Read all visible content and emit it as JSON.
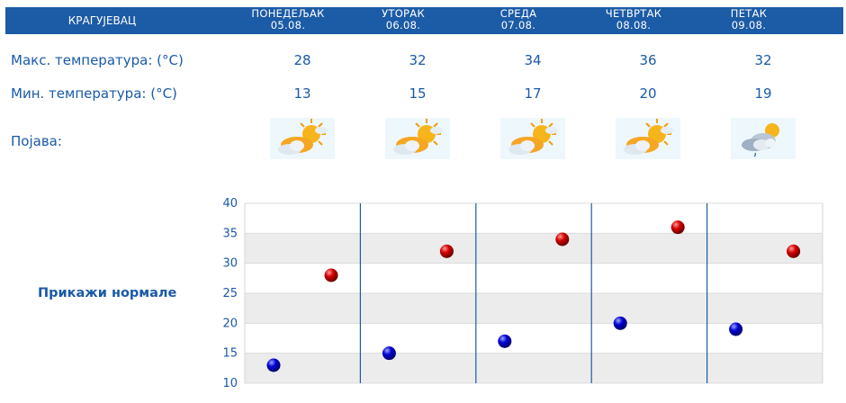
{
  "header": {
    "city": "КРАГУЈЕВАЦ",
    "days": [
      {
        "name": "ПОНЕДЕЉАК",
        "date": "05.08."
      },
      {
        "name": "УТОРАК",
        "date": "06.08."
      },
      {
        "name": "СРЕДА",
        "date": "07.08."
      },
      {
        "name": "ЧЕТВРТАК",
        "date": "08.08."
      },
      {
        "name": "ПЕТАК",
        "date": "09.08."
      }
    ]
  },
  "rows": {
    "max_label": "Макс. температура: (°C)",
    "min_label": "Мин. температура: (°C)",
    "phenomenon_label": "Појава:",
    "max": [
      "28",
      "32",
      "34",
      "36",
      "32"
    ],
    "min": [
      "13",
      "15",
      "17",
      "20",
      "19"
    ],
    "icons": [
      "partly-sunny-icon",
      "partly-sunny-icon",
      "partly-sunny-icon",
      "partly-sunny-icon",
      "cloudy-drizzle-icon"
    ]
  },
  "normals_label": "Прикажи нормале",
  "colors": {
    "header_bg": "#1c5ba6",
    "text": "#1a5aa8",
    "max_dot": "#c40000",
    "min_dot": "#0000c8",
    "band": "#ececec"
  },
  "chart_data": {
    "type": "scatter",
    "categories": [
      "05.08.",
      "06.08.",
      "07.08.",
      "08.08.",
      "09.08."
    ],
    "series": [
      {
        "values": [
          28,
          32,
          34,
          36,
          32
        ]
      },
      {
        "values": [
          13,
          15,
          17,
          20,
          19
        ]
      }
    ],
    "ylim": [
      10,
      40
    ],
    "yticks": [
      "10",
      "15",
      "20",
      "25",
      "30",
      "35",
      "40"
    ],
    "grid": true
  }
}
